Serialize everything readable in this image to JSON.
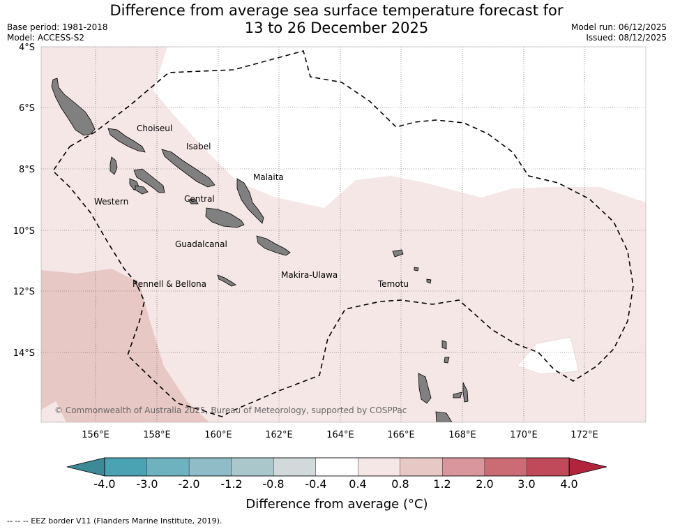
{
  "title_line1": "Difference from average sea surface temperature forecast for",
  "title_line2": "13 to 26 December 2025",
  "meta_left": {
    "base_period": "Base period: 1981-2018",
    "model": "Model: ACCESS-S2"
  },
  "meta_right": {
    "model_run": "Model run: 06/12/2025",
    "issued": "Issued: 08/12/2025"
  },
  "map": {
    "lat_labels": [
      "4°S",
      "6°S",
      "8°S",
      "10°S",
      "12°S",
      "14°S"
    ],
    "lon_labels": [
      "156°E",
      "158°E",
      "160°E",
      "162°E",
      "164°E",
      "166°E",
      "168°E",
      "170°E",
      "172°E"
    ],
    "regions": [
      "Choiseul",
      "Isabel",
      "Malaita",
      "Western",
      "Central",
      "Guadalcanal",
      "Makira-Ulawa",
      "Rennell & Bellona",
      "Temotu"
    ],
    "copyright": "© Commonwealth of Australia 2025, Bureau of Meteorology, supported by COSPPac"
  },
  "colorbar": {
    "labels": [
      "-4.0",
      "-3.0",
      "-2.0",
      "-1.2",
      "-0.8",
      "-0.4",
      "0.4",
      "0.8",
      "1.2",
      "2.0",
      "3.0",
      "4.0"
    ],
    "colors": [
      "#4aa3b3",
      "#6eb2c0",
      "#8fbcc6",
      "#aac7cb",
      "#d1d9db",
      "#ffffff",
      "#f5e7e6",
      "#e8c8c4",
      "#d9969c",
      "#cb6c75",
      "#c04a5a"
    ],
    "under_color": "#3c8a98",
    "over_color": "#b0243c",
    "title": "Difference from average (°C)"
  },
  "footnote": "--  --  -- EEZ border V11 (Flanders Marine Institute, 2019)."
}
